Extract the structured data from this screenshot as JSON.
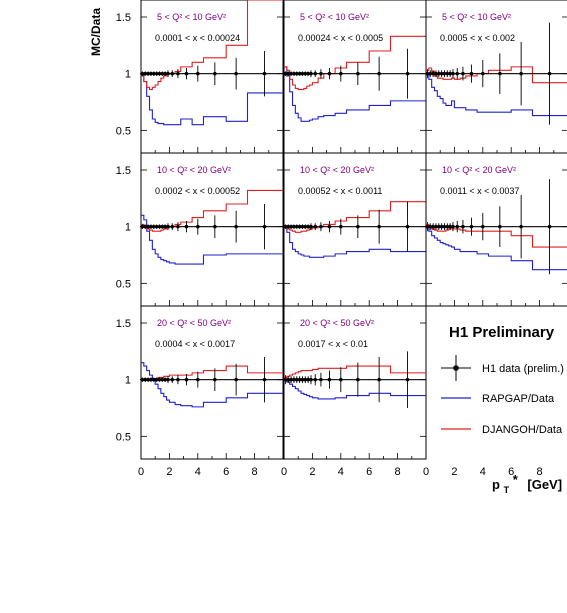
{
  "figure": {
    "ylabel": "MC/Data",
    "xlabel_main": "p",
    "xlabel_sub": "T",
    "xlabel_star": "*",
    "xlabel_unit": "[GeV]",
    "yticks": [
      "0.5",
      "1",
      "1.5"
    ],
    "xticks": [
      "0",
      "2",
      "4",
      "6",
      "8"
    ]
  },
  "legend": {
    "title": "H1 Preliminary",
    "data_label": "H1 data (prelim.)",
    "rapgap_label": "RAPGAP/Data",
    "djangoh_label": "DJANGOH/Data"
  },
  "colors": {
    "data": "#000000",
    "rapgap": "#2020d0",
    "djangoh": "#e02020",
    "q2_label": "#800080",
    "x_label": "#000000"
  },
  "chart_data": {
    "type": "line",
    "xlim": [
      0,
      10
    ],
    "ylim": [
      0.3,
      1.65
    ],
    "x_axis_label": "pT* [GeV]",
    "y_axis_label": "MC/Data",
    "series_names": [
      "H1 data (prelim.)",
      "RAPGAP/Data",
      "DJANGOH/Data"
    ],
    "data_x": [
      0.1,
      0.3,
      0.5,
      0.7,
      0.9,
      1.1,
      1.3,
      1.5,
      1.7,
      1.9,
      2.2,
      2.6,
      3.2,
      4.0,
      5.2,
      6.7,
      8.7
    ],
    "panels": [
      {
        "q2_label": "5 < Q² < 10 GeV²",
        "x_label": "0.0001 < x < 0.00024",
        "edges": [
          0,
          0.2,
          0.4,
          0.6,
          0.8,
          1,
          1.2,
          1.4,
          1.6,
          1.8,
          2,
          2.4,
          2.8,
          3.6,
          4.4,
          6,
          7.5,
          10
        ],
        "rapgap": [
          0.99,
          0.93,
          0.8,
          0.68,
          0.6,
          0.57,
          0.56,
          0.56,
          0.55,
          0.55,
          0.55,
          0.55,
          0.6,
          0.55,
          0.62,
          0.58,
          0.83
        ],
        "djangoh": [
          0.98,
          0.93,
          0.88,
          0.86,
          0.88,
          0.9,
          0.93,
          0.96,
          0.98,
          1.0,
          1.0,
          1.02,
          1.06,
          1.1,
          1.14,
          1.25,
          1.65
        ],
        "data_err": [
          0.02,
          0.02,
          0.02,
          0.02,
          0.02,
          0.02,
          0.02,
          0.02,
          0.02,
          0.03,
          0.03,
          0.04,
          0.05,
          0.07,
          0.1,
          0.14,
          0.2
        ]
      },
      {
        "q2_label": "5 < Q² < 10 GeV²",
        "x_label": "0.00024 < x < 0.0005",
        "edges": [
          0,
          0.2,
          0.4,
          0.6,
          0.8,
          1,
          1.2,
          1.4,
          1.6,
          1.8,
          2,
          2.4,
          2.8,
          3.6,
          4.4,
          6,
          7.5,
          10
        ],
        "rapgap": [
          1.06,
          0.98,
          0.84,
          0.72,
          0.65,
          0.61,
          0.58,
          0.58,
          0.58,
          0.59,
          0.6,
          0.62,
          0.63,
          0.65,
          0.68,
          0.72,
          0.76
        ],
        "djangoh": [
          1.06,
          1.03,
          0.95,
          0.9,
          0.87,
          0.86,
          0.86,
          0.87,
          0.89,
          0.9,
          0.92,
          0.96,
          1.0,
          1.05,
          1.1,
          1.2,
          1.33
        ],
        "data_err": [
          0.02,
          0.02,
          0.02,
          0.02,
          0.02,
          0.02,
          0.02,
          0.02,
          0.02,
          0.03,
          0.03,
          0.04,
          0.05,
          0.07,
          0.1,
          0.15,
          0.22
        ]
      },
      {
        "q2_label": "5 < Q² < 10 GeV²",
        "x_label": "0.0005 < x < 0.002",
        "edges": [
          0,
          0.2,
          0.4,
          0.6,
          0.8,
          1,
          1.2,
          1.4,
          1.6,
          1.8,
          2,
          2.4,
          2.8,
          3.6,
          4.4,
          6,
          7.5,
          10
        ],
        "rapgap": [
          1.0,
          0.95,
          0.88,
          0.85,
          0.8,
          0.78,
          0.74,
          0.72,
          0.72,
          0.76,
          0.7,
          0.7,
          0.68,
          0.66,
          0.66,
          0.68,
          0.63
        ],
        "djangoh": [
          1.03,
          1.05,
          1.02,
          0.98,
          0.96,
          0.96,
          0.95,
          0.95,
          0.95,
          0.96,
          0.95,
          0.96,
          0.98,
          1.0,
          1.03,
          1.06,
          0.92
        ],
        "data_err": [
          0.04,
          0.03,
          0.03,
          0.03,
          0.03,
          0.03,
          0.03,
          0.03,
          0.03,
          0.04,
          0.05,
          0.06,
          0.08,
          0.12,
          0.18,
          0.28,
          0.45
        ]
      },
      {
        "q2_label": "10 < Q² < 20 GeV²",
        "x_label": "0.0002 < x < 0.00052",
        "edges": [
          0,
          0.2,
          0.4,
          0.6,
          0.8,
          1,
          1.2,
          1.4,
          1.6,
          1.8,
          2,
          2.4,
          2.8,
          3.6,
          4.4,
          6,
          7.5,
          10
        ],
        "rapgap": [
          1.1,
          1.06,
          0.96,
          0.88,
          0.8,
          0.76,
          0.73,
          0.71,
          0.7,
          0.69,
          0.68,
          0.67,
          0.67,
          0.67,
          0.75,
          0.76,
          0.76
        ],
        "djangoh": [
          1.02,
          1.0,
          0.98,
          0.97,
          0.96,
          0.96,
          0.96,
          0.97,
          0.98,
          0.99,
          1.0,
          1.02,
          1.04,
          1.08,
          1.14,
          1.2,
          1.32
        ],
        "data_err": [
          0.02,
          0.02,
          0.02,
          0.02,
          0.02,
          0.02,
          0.02,
          0.02,
          0.02,
          0.03,
          0.03,
          0.04,
          0.05,
          0.07,
          0.1,
          0.14,
          0.2
        ]
      },
      {
        "q2_label": "10 < Q² < 20 GeV²",
        "x_label": "0.00052 < x < 0.0011",
        "edges": [
          0,
          0.2,
          0.4,
          0.6,
          0.8,
          1,
          1.2,
          1.4,
          1.6,
          1.8,
          2,
          2.4,
          2.8,
          3.6,
          4.4,
          6,
          7.5,
          10
        ],
        "rapgap": [
          1.0,
          0.95,
          0.86,
          0.8,
          0.78,
          0.76,
          0.75,
          0.74,
          0.74,
          0.73,
          0.73,
          0.73,
          0.74,
          0.76,
          0.78,
          0.8,
          0.78
        ],
        "djangoh": [
          1.0,
          0.98,
          0.97,
          0.96,
          0.95,
          0.95,
          0.96,
          0.96,
          0.97,
          0.98,
          0.99,
          1.0,
          1.02,
          1.05,
          1.08,
          1.14,
          1.22
        ],
        "data_err": [
          0.02,
          0.02,
          0.02,
          0.02,
          0.02,
          0.02,
          0.02,
          0.02,
          0.02,
          0.03,
          0.03,
          0.04,
          0.05,
          0.07,
          0.1,
          0.15,
          0.22
        ]
      },
      {
        "q2_label": "10 < Q² < 20 GeV²",
        "x_label": "0.0011 < x < 0.0037",
        "edges": [
          0,
          0.2,
          0.4,
          0.6,
          0.8,
          1,
          1.2,
          1.4,
          1.6,
          1.8,
          2,
          2.4,
          2.8,
          3.6,
          4.4,
          6,
          7.5,
          10
        ],
        "rapgap": [
          1.0,
          0.96,
          0.92,
          0.9,
          0.88,
          0.86,
          0.85,
          0.84,
          0.83,
          0.82,
          0.8,
          0.78,
          0.78,
          0.76,
          0.74,
          0.7,
          0.62
        ],
        "djangoh": [
          1.02,
          1.0,
          0.98,
          0.97,
          0.96,
          0.96,
          0.96,
          0.97,
          0.98,
          0.98,
          0.98,
          0.97,
          0.96,
          0.96,
          0.96,
          0.92,
          0.82
        ],
        "data_err": [
          0.04,
          0.03,
          0.03,
          0.03,
          0.03,
          0.03,
          0.03,
          0.03,
          0.03,
          0.04,
          0.05,
          0.06,
          0.08,
          0.12,
          0.18,
          0.28,
          0.42
        ]
      },
      {
        "q2_label": "20 < Q² < 50 GeV²",
        "x_label": "0.0004 < x < 0.0017",
        "edges": [
          0,
          0.2,
          0.4,
          0.6,
          0.8,
          1,
          1.2,
          1.4,
          1.6,
          1.8,
          2,
          2.4,
          2.8,
          3.6,
          4.4,
          6,
          7.5,
          10
        ],
        "rapgap": [
          1.15,
          1.12,
          1.08,
          1.04,
          1.0,
          0.96,
          0.92,
          0.88,
          0.85,
          0.82,
          0.8,
          0.78,
          0.77,
          0.76,
          0.8,
          0.84,
          0.88
        ],
        "djangoh": [
          1.0,
          1.0,
          1.0,
          1.0,
          1.0,
          1.01,
          1.02,
          1.02,
          1.03,
          1.03,
          1.04,
          1.04,
          1.04,
          1.06,
          1.08,
          1.12,
          1.06
        ],
        "data_err": [
          0.02,
          0.02,
          0.02,
          0.02,
          0.02,
          0.02,
          0.02,
          0.02,
          0.02,
          0.03,
          0.03,
          0.04,
          0.05,
          0.07,
          0.1,
          0.14,
          0.2
        ]
      },
      {
        "q2_label": "20 < Q² < 50 GeV²",
        "x_label": "0.0017 < x < 0.01",
        "edges": [
          0,
          0.2,
          0.4,
          0.6,
          0.8,
          1,
          1.2,
          1.4,
          1.6,
          1.8,
          2,
          2.4,
          2.8,
          3.6,
          4.4,
          6,
          7.5,
          10
        ],
        "rapgap": [
          1.0,
          0.98,
          0.96,
          0.94,
          0.92,
          0.9,
          0.88,
          0.87,
          0.86,
          0.85,
          0.84,
          0.83,
          0.83,
          0.84,
          0.86,
          0.88,
          0.86
        ],
        "djangoh": [
          1.02,
          1.03,
          1.04,
          1.05,
          1.06,
          1.07,
          1.08,
          1.08,
          1.08,
          1.08,
          1.09,
          1.1,
          1.1,
          1.1,
          1.12,
          1.12,
          1.06
        ],
        "data_err": [
          0.04,
          0.03,
          0.03,
          0.03,
          0.03,
          0.03,
          0.03,
          0.03,
          0.03,
          0.04,
          0.05,
          0.06,
          0.08,
          0.11,
          0.15,
          0.2,
          0.25
        ]
      }
    ]
  }
}
